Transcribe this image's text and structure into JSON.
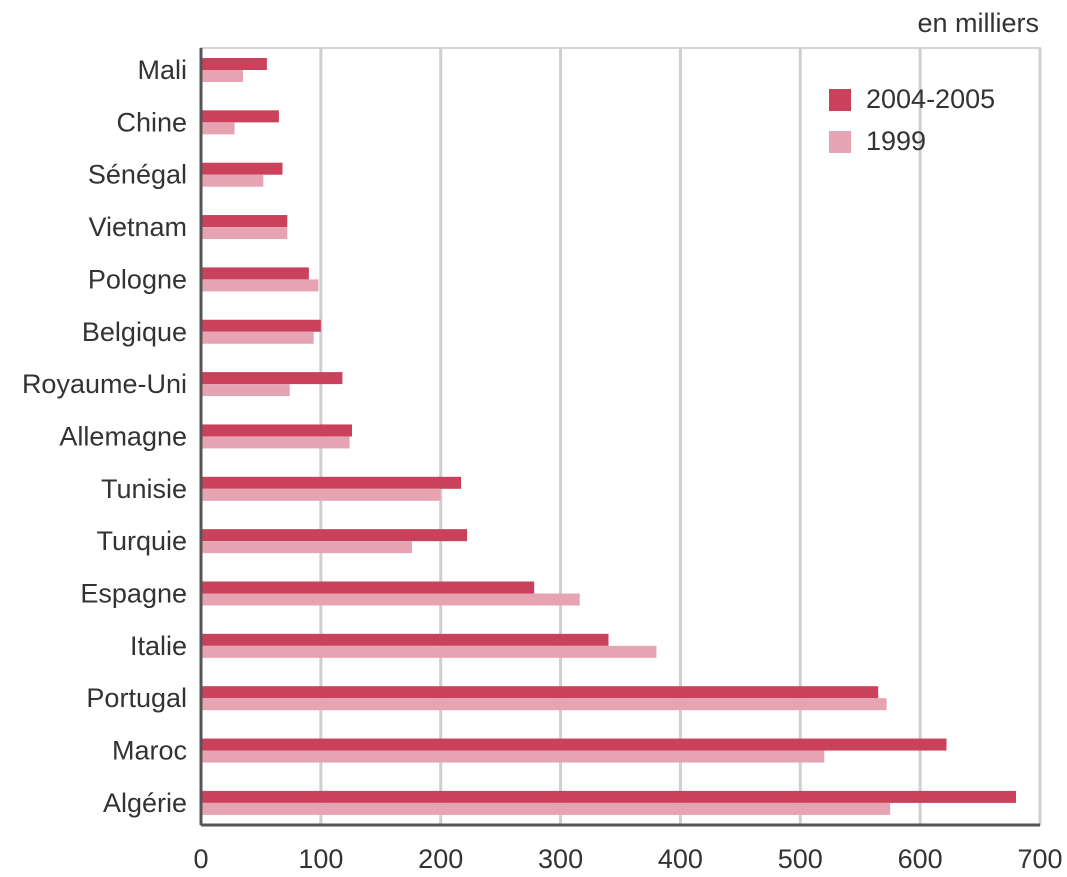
{
  "chart_data": {
    "type": "bar",
    "orientation": "horizontal",
    "unit_label": "en milliers",
    "categories": [
      "Mali",
      "Chine",
      "Sénégal",
      "Vietnam",
      "Pologne",
      "Belgique",
      "Royaume-Uni",
      "Allemagne",
      "Tunisie",
      "Turquie",
      "Espagne",
      "Italie",
      "Portugal",
      "Maroc",
      "Algérie"
    ],
    "series": [
      {
        "name": "2004-2005",
        "color": "#c9415b",
        "values": [
          55,
          65,
          68,
          72,
          90,
          100,
          118,
          126,
          217,
          222,
          278,
          340,
          565,
          622,
          680
        ]
      },
      {
        "name": "1999",
        "color": "#e6a3b1",
        "values": [
          35,
          28,
          52,
          72,
          98,
          94,
          74,
          124,
          200,
          176,
          316,
          380,
          572,
          520,
          575
        ]
      }
    ],
    "xlim": [
      0,
      700
    ],
    "xticks": [
      0,
      100,
      200,
      300,
      400,
      500,
      600,
      700
    ],
    "grid": true,
    "legend_position": "top-right"
  }
}
